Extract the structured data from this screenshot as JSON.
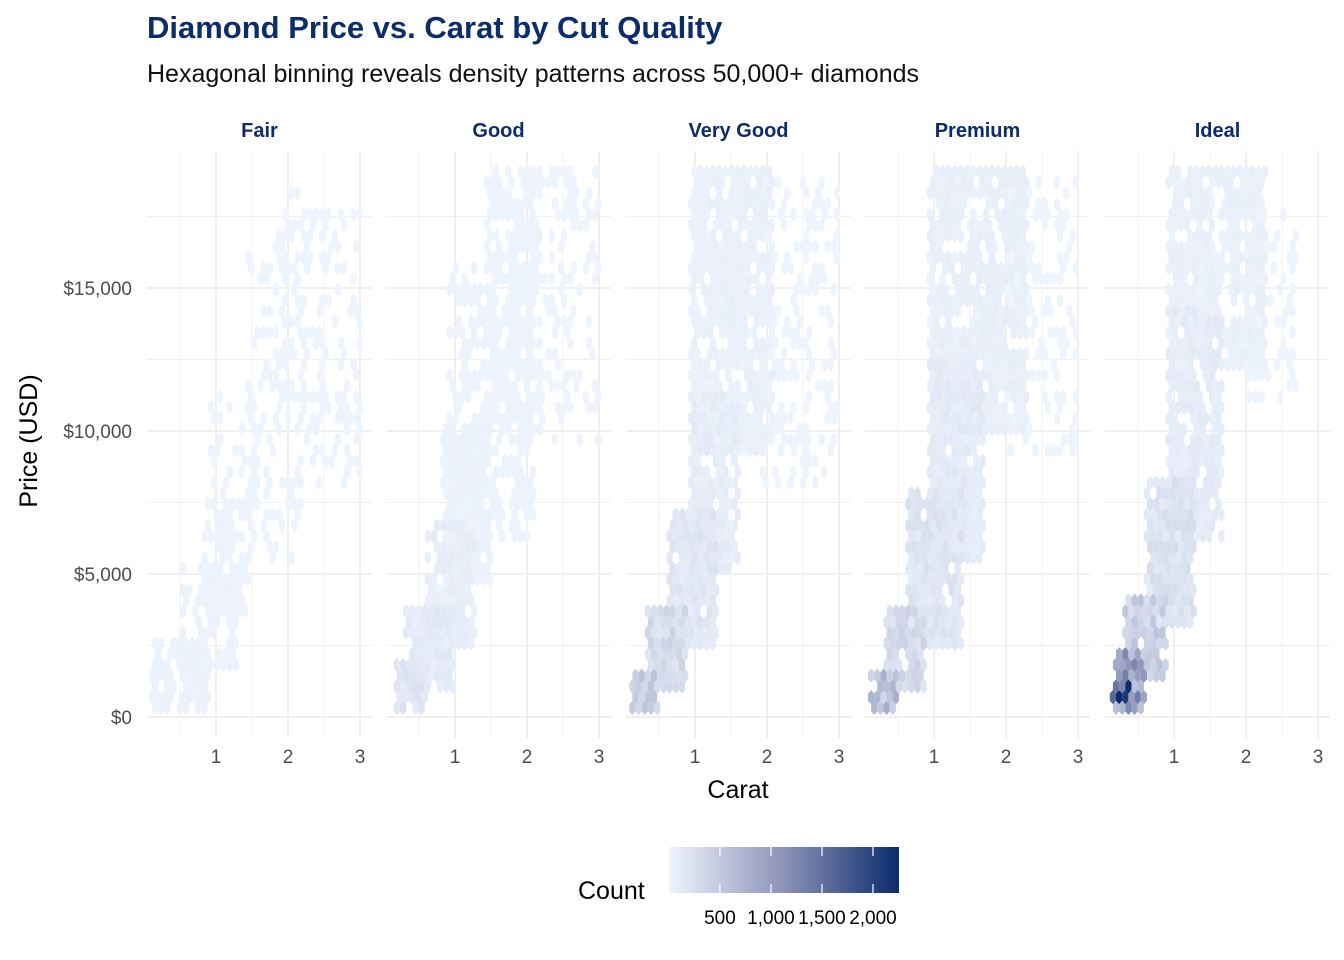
{
  "title": "Diamond Price vs. Carat by Cut Quality",
  "subtitle": "Hexagonal binning reveals density patterns across 50,000+ diamonds",
  "chart_data": {
    "type": "heatmap",
    "subtype": "hexbin-faceted",
    "title": "Diamond Price vs. Carat by Cut Quality",
    "subtitle": "Hexagonal binning reveals density patterns across 50,000+ diamonds",
    "xlabel": "Carat",
    "ylabel": "Price (USD)",
    "xlim": [
      0.05,
      3.1
    ],
    "ylim": [
      0,
      19800
    ],
    "x_ticks": [
      1,
      2,
      3
    ],
    "x_tick_labels": [
      "1",
      "2",
      "3"
    ],
    "x_minor": [
      0.5,
      1.5,
      2.5
    ],
    "y_ticks": [
      0,
      5000,
      10000,
      15000
    ],
    "y_tick_labels": [
      "$0",
      "$5,000",
      "$10,000",
      "$15,000"
    ],
    "y_minor": [
      2500,
      7500,
      12500,
      17500
    ],
    "grid": true,
    "legend": {
      "title": "Count",
      "position": "bottom",
      "range": [
        1,
        2255
      ],
      "ticks": [
        500,
        1000,
        1500,
        2000
      ],
      "tick_labels": [
        "500",
        "1,000",
        "1,500",
        "2,000"
      ],
      "low_color": "#eef4fd",
      "high_color": "#0b2b6b"
    },
    "facets": [
      {
        "name": "Fair",
        "regions": [
          {
            "x": [
              0.15,
              0.9
            ],
            "y": [
              300,
              2500
            ],
            "count": 25
          },
          {
            "x": [
              0.6,
              1.3
            ],
            "y": [
              1500,
              5000
            ],
            "count": 18
          },
          {
            "x": [
              0.9,
              1.5
            ],
            "y": [
              3500,
              7500
            ],
            "count": 8
          },
          {
            "x": [
              1.0,
              1.6
            ],
            "y": [
              6000,
              11000
            ],
            "count": 3
          },
          {
            "x": [
              1.5,
              2.2
            ],
            "y": [
              5500,
              16000
            ],
            "count": 4
          },
          {
            "x": [
              1.9,
              2.3
            ],
            "y": [
              11000,
              18500
            ],
            "count": 3
          },
          {
            "x": [
              2.3,
              3.0
            ],
            "y": [
              8000,
              17500
            ],
            "count": 1
          }
        ]
      },
      {
        "name": "Good",
        "regions": [
          {
            "x": [
              0.25,
              0.6
            ],
            "y": [
              300,
              1500
            ],
            "count": 160
          },
          {
            "x": [
              0.4,
              1.0
            ],
            "y": [
              700,
              3500
            ],
            "count": 110
          },
          {
            "x": [
              0.7,
              1.3
            ],
            "y": [
              2500,
              6500
            ],
            "count": 75
          },
          {
            "x": [
              0.9,
              1.5
            ],
            "y": [
              4500,
              10000
            ],
            "count": 30
          },
          {
            "x": [
              1.0,
              2.1
            ],
            "y": [
              6000,
              15500
            ],
            "count": 12
          },
          {
            "x": [
              1.5,
              2.2
            ],
            "y": [
              10000,
              19000
            ],
            "count": 6
          },
          {
            "x": [
              2.0,
              3.0
            ],
            "y": [
              9500,
              19000
            ],
            "count": 2
          }
        ]
      },
      {
        "name": "Very Good",
        "regions": [
          {
            "x": [
              0.2,
              0.5
            ],
            "y": [
              300,
              1200
            ],
            "count": 460
          },
          {
            "x": [
              0.4,
              0.9
            ],
            "y": [
              900,
              3500
            ],
            "count": 280
          },
          {
            "x": [
              0.7,
              1.3
            ],
            "y": [
              2500,
              7000
            ],
            "count": 150
          },
          {
            "x": [
              1.0,
              1.6
            ],
            "y": [
              5000,
              11000
            ],
            "count": 90
          },
          {
            "x": [
              1.0,
              2.1
            ],
            "y": [
              9000,
              19000
            ],
            "count": 40
          },
          {
            "x": [
              2.0,
              3.0
            ],
            "y": [
              8000,
              18500
            ],
            "count": 3
          }
        ]
      },
      {
        "name": "Premium",
        "regions": [
          {
            "x": [
              0.2,
              0.5
            ],
            "y": [
              300,
              1200
            ],
            "count": 600
          },
          {
            "x": [
              0.4,
              0.9
            ],
            "y": [
              900,
              3500
            ],
            "count": 300
          },
          {
            "x": [
              0.7,
              1.4
            ],
            "y": [
              2500,
              7500
            ],
            "count": 170
          },
          {
            "x": [
              1.0,
              1.7
            ],
            "y": [
              5500,
              12000
            ],
            "count": 110
          },
          {
            "x": [
              1.0,
              2.3
            ],
            "y": [
              10000,
              19000
            ],
            "count": 55
          },
          {
            "x": [
              2.1,
              3.0
            ],
            "y": [
              9000,
              18500
            ],
            "count": 4
          }
        ]
      },
      {
        "name": "Ideal",
        "regions": [
          {
            "x": [
              0.2,
              0.4
            ],
            "y": [
              400,
              1000
            ],
            "count": 2200
          },
          {
            "x": [
              0.25,
              0.6
            ],
            "y": [
              300,
              2000
            ],
            "count": 950
          },
          {
            "x": [
              0.4,
              0.9
            ],
            "y": [
              1200,
              4000
            ],
            "count": 420
          },
          {
            "x": [
              0.7,
              1.3
            ],
            "y": [
              3000,
              8000
            ],
            "count": 200
          },
          {
            "x": [
              1.0,
              1.7
            ],
            "y": [
              6000,
              14000
            ],
            "count": 100
          },
          {
            "x": [
              1.0,
              2.3
            ],
            "y": [
              12000,
              19000
            ],
            "count": 45
          },
          {
            "x": [
              2.1,
              2.7
            ],
            "y": [
              11000,
              17500
            ],
            "count": 3
          }
        ]
      }
    ]
  }
}
